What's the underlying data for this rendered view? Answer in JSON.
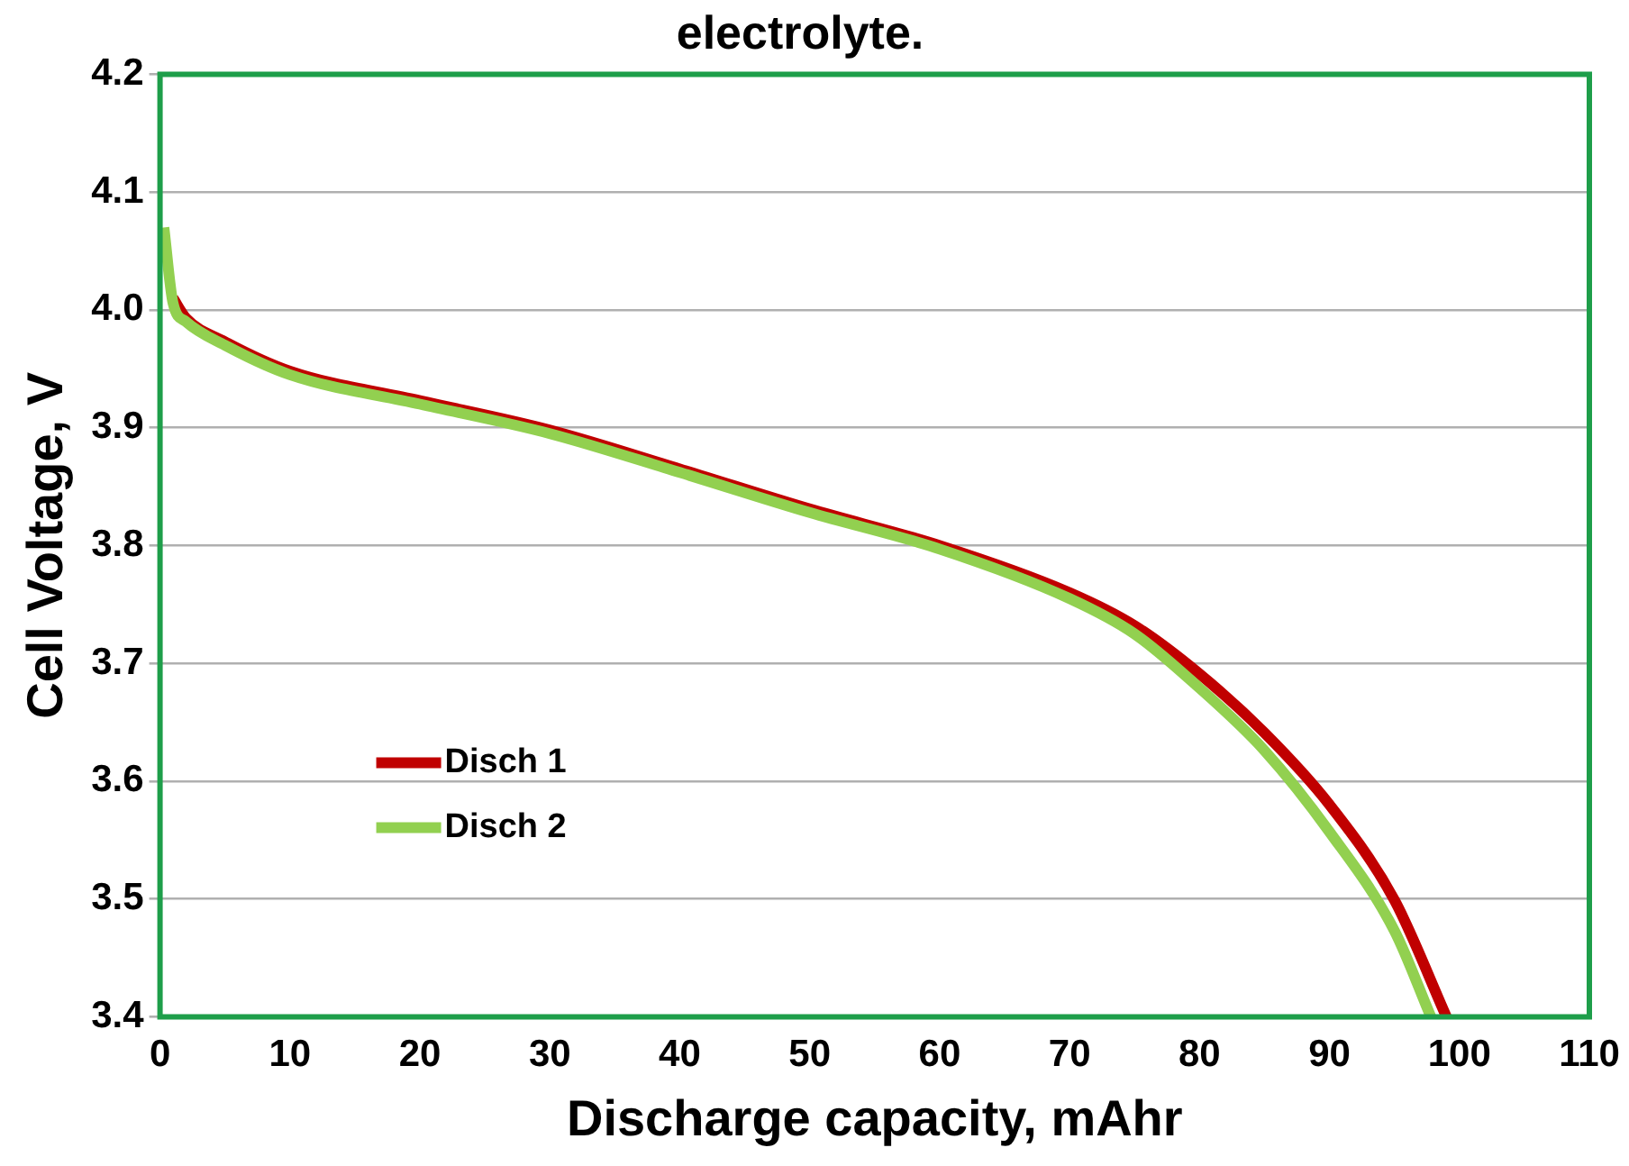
{
  "chart_data": {
    "type": "line",
    "title": "electrolyte.",
    "xlabel": "Discharge capacity, mAhr",
    "ylabel": "Cell Voltage, V",
    "xlim": [
      0,
      110
    ],
    "xticks": [
      0,
      10,
      20,
      30,
      40,
      50,
      60,
      70,
      80,
      90,
      100,
      110
    ],
    "ylim": [
      3.4,
      4.2
    ],
    "yticks": [
      {
        "value": 3.4,
        "label": "3.4"
      },
      {
        "value": 3.5,
        "label": "3.5"
      },
      {
        "value": 3.6,
        "label": "3.6"
      },
      {
        "value": 3.7,
        "label": "3.7"
      },
      {
        "value": 3.8,
        "label": "3.8"
      },
      {
        "value": 3.9,
        "label": "3.9"
      },
      {
        "value": 4.0,
        "label": "4.0"
      },
      {
        "value": 4.1,
        "label": "4.1"
      },
      {
        "value": 4.2,
        "label": "4.2"
      }
    ],
    "grid": "y",
    "legend": "bottom left",
    "marker": "none",
    "line_style": "solid",
    "series": [
      {
        "name": "Disch 1",
        "color": "#c00000",
        "x": [
          1,
          2,
          5,
          10,
          20,
          30,
          40,
          50,
          60,
          70,
          75,
          80,
          85,
          90,
          95,
          99
        ],
        "values": [
          4.01,
          3.993,
          3.973,
          3.948,
          3.923,
          3.898,
          3.865,
          3.831,
          3.8,
          3.76,
          3.732,
          3.691,
          3.641,
          3.58,
          3.499,
          3.4
        ]
      },
      {
        "name": "Disch 2",
        "color": "#92d050",
        "x": [
          0.3,
          1,
          2,
          5,
          10,
          20,
          30,
          40,
          50,
          60,
          70,
          75,
          80,
          85,
          90,
          95,
          97.8
        ],
        "values": [
          4.07,
          4.006,
          3.99,
          3.97,
          3.945,
          3.92,
          3.895,
          3.862,
          3.828,
          3.797,
          3.755,
          3.725,
          3.679,
          3.626,
          3.557,
          3.473,
          3.4
        ]
      }
    ]
  }
}
